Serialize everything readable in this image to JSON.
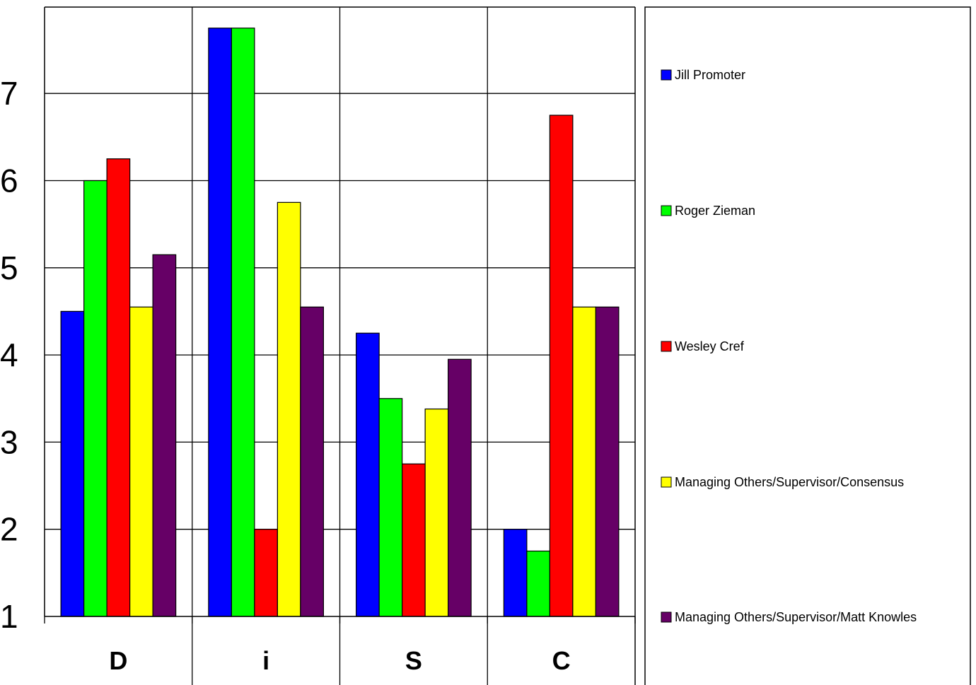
{
  "chart_data": {
    "type": "bar",
    "title": "",
    "xlabel": "",
    "ylabel": "",
    "categories": [
      "D",
      "i",
      "S",
      "C"
    ],
    "y_ticks": [
      "1",
      "2",
      "3",
      "4",
      "5",
      "6",
      "7"
    ],
    "ylim": [
      1,
      8
    ],
    "grid": true,
    "legend_position": "right",
    "series": [
      {
        "name": "Jill Promoter",
        "color": "#0000ff",
        "values": [
          4.5,
          7.75,
          4.25,
          2.0
        ]
      },
      {
        "name": "Roger Zieman",
        "color": "#00ff00",
        "values": [
          6.0,
          7.75,
          3.5,
          1.75
        ]
      },
      {
        "name": "Wesley Cref",
        "color": "#ff0000",
        "values": [
          6.25,
          2.0,
          2.75,
          6.75
        ]
      },
      {
        "name": "Managing Others/Supervisor/Consensus",
        "color": "#ffff00",
        "values": [
          4.55,
          5.75,
          3.38,
          4.55
        ]
      },
      {
        "name": "Managing Others/Supervisor/Matt Knowles",
        "color": "#660066",
        "values": [
          5.15,
          4.55,
          3.95,
          4.55
        ]
      }
    ]
  }
}
